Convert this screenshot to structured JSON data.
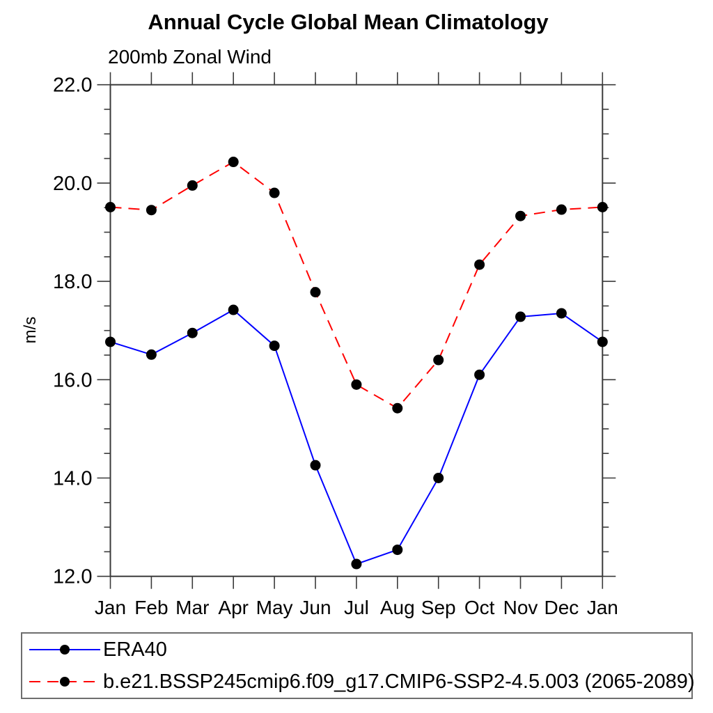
{
  "page": {
    "background": "#ffffff"
  },
  "chart_data": {
    "type": "line",
    "title": "Annual Cycle Global Mean Climatology",
    "subtitle": "200mb Zonal Wind",
    "ylabel": "m/s",
    "xlabel": "",
    "categories": [
      "Jan",
      "Feb",
      "Mar",
      "Apr",
      "May",
      "Jun",
      "Jul",
      "Aug",
      "Sep",
      "Oct",
      "Nov",
      "Dec",
      "Jan"
    ],
    "ylim": [
      12.0,
      22.0
    ],
    "ytick_major_interval": 2.0,
    "ytick_minor_interval": 0.5,
    "ytick_labels": [
      "12.0",
      "14.0",
      "16.0",
      "18.0",
      "20.0",
      "22.0"
    ],
    "grid": false,
    "legend_position": "bottom-left-box",
    "marker": "filled-circle",
    "marker_color": "#000000",
    "axis_color": "#3a3a3a",
    "series": [
      {
        "name": "ERA40",
        "color": "#0000ff",
        "line_style": "solid",
        "values": [
          16.77,
          16.51,
          16.95,
          17.42,
          16.69,
          14.26,
          12.25,
          12.54,
          14.0,
          16.1,
          17.28,
          17.35,
          16.77
        ]
      },
      {
        "name": "b.e21.BSSP245cmip6.f09_g17.CMIP6-SSP2-4.5.003 (2065-2089)",
        "color": "#ff0000",
        "line_style": "dashed",
        "values": [
          19.51,
          19.45,
          19.95,
          20.43,
          19.8,
          17.78,
          15.9,
          15.42,
          16.4,
          18.34,
          19.33,
          19.46,
          19.51
        ]
      }
    ]
  }
}
